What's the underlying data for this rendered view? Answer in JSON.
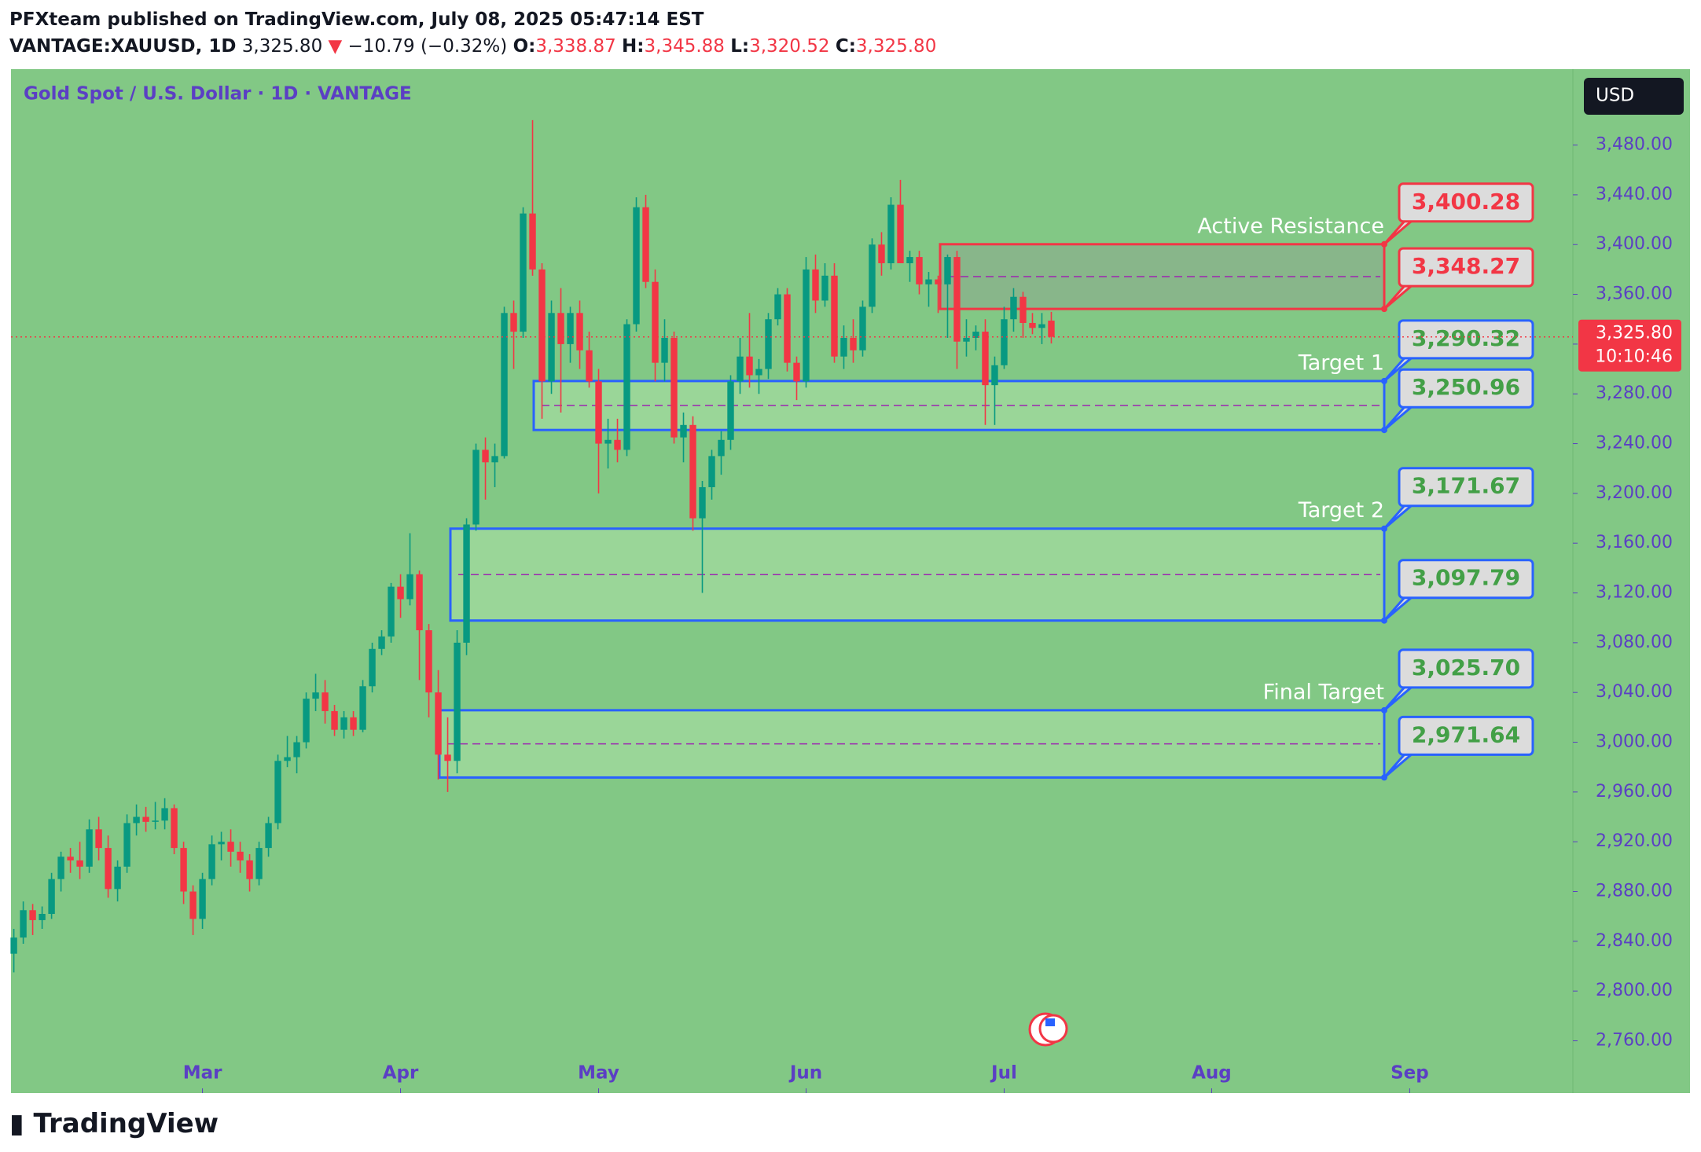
{
  "header": {
    "published": "PFXteam published on TradingView.com, July 08, 2025 05:47:14 EST",
    "symbol": "VANTAGE:XAUUSD, 1D",
    "last": "3,325.80",
    "arrow": "▼",
    "change": "−10.79 (−0.32%)",
    "o_label": "O:",
    "o": "3,338.87",
    "h_label": "H:",
    "h": "3,345.88",
    "l_label": "L:",
    "l": "3,320.52",
    "c_label": "C:",
    "c": "3,325.80"
  },
  "chart_data": {
    "type": "candlestick",
    "title": "Gold Spot / U.S. Dollar · 1D · VANTAGE",
    "up_color": "#089981",
    "down_color": "#f23645",
    "background": "#82c885",
    "ohlc": [
      [
        2830,
        2850,
        2815,
        2843
      ],
      [
        2843,
        2872,
        2838,
        2865
      ],
      [
        2865,
        2870,
        2845,
        2857
      ],
      [
        2857,
        2868,
        2850,
        2862
      ],
      [
        2862,
        2895,
        2858,
        2890
      ],
      [
        2890,
        2912,
        2880,
        2908
      ],
      [
        2908,
        2915,
        2895,
        2905
      ],
      [
        2905,
        2920,
        2890,
        2900
      ],
      [
        2900,
        2938,
        2895,
        2930
      ],
      [
        2930,
        2940,
        2905,
        2915
      ],
      [
        2915,
        2925,
        2875,
        2882
      ],
      [
        2882,
        2905,
        2872,
        2900
      ],
      [
        2900,
        2942,
        2895,
        2935
      ],
      [
        2935,
        2950,
        2925,
        2940
      ],
      [
        2940,
        2948,
        2928,
        2936
      ],
      [
        2936,
        2952,
        2930,
        2937
      ],
      [
        2937,
        2955,
        2930,
        2947
      ],
      [
        2947,
        2950,
        2910,
        2915
      ],
      [
        2915,
        2920,
        2870,
        2880
      ],
      [
        2880,
        2885,
        2845,
        2858
      ],
      [
        2858,
        2895,
        2850,
        2890
      ],
      [
        2890,
        2925,
        2885,
        2918
      ],
      [
        2918,
        2928,
        2905,
        2920
      ],
      [
        2920,
        2930,
        2900,
        2912
      ],
      [
        2912,
        2920,
        2895,
        2905
      ],
      [
        2905,
        2910,
        2880,
        2890
      ],
      [
        2890,
        2920,
        2885,
        2915
      ],
      [
        2915,
        2940,
        2908,
        2935
      ],
      [
        2935,
        2990,
        2930,
        2985
      ],
      [
        2985,
        3005,
        2980,
        2988
      ],
      [
        2988,
        3005,
        2975,
        3000
      ],
      [
        3000,
        3040,
        2995,
        3035
      ],
      [
        3035,
        3055,
        3025,
        3040
      ],
      [
        3040,
        3050,
        3015,
        3025
      ],
      [
        3025,
        3030,
        3005,
        3010
      ],
      [
        3010,
        3025,
        3003,
        3020
      ],
      [
        3020,
        3025,
        3005,
        3010
      ],
      [
        3010,
        3050,
        3008,
        3045
      ],
      [
        3045,
        3080,
        3040,
        3075
      ],
      [
        3075,
        3090,
        3070,
        3085
      ],
      [
        3085,
        3128,
        3080,
        3125
      ],
      [
        3125,
        3135,
        3100,
        3115
      ],
      [
        3115,
        3168,
        3110,
        3135
      ],
      [
        3135,
        3138,
        3050,
        3090
      ],
      [
        3090,
        3095,
        3020,
        3040
      ],
      [
        3040,
        3058,
        2970,
        2990
      ],
      [
        2990,
        3020,
        2960,
        2985
      ],
      [
        2985,
        3090,
        2975,
        3080
      ],
      [
        3080,
        3180,
        3070,
        3175
      ],
      [
        3175,
        3240,
        3170,
        3235
      ],
      [
        3235,
        3245,
        3195,
        3225
      ],
      [
        3225,
        3240,
        3205,
        3230
      ],
      [
        3230,
        3350,
        3228,
        3345
      ],
      [
        3345,
        3355,
        3300,
        3330
      ],
      [
        3330,
        3430,
        3325,
        3425
      ],
      [
        3425,
        3500,
        3375,
        3380
      ],
      [
        3380,
        3385,
        3260,
        3290
      ],
      [
        3290,
        3355,
        3280,
        3345
      ],
      [
        3345,
        3365,
        3265,
        3320
      ],
      [
        3320,
        3350,
        3305,
        3345
      ],
      [
        3345,
        3355,
        3300,
        3315
      ],
      [
        3315,
        3330,
        3285,
        3290
      ],
      [
        3290,
        3300,
        3200,
        3240
      ],
      [
        3240,
        3260,
        3220,
        3243
      ],
      [
        3243,
        3260,
        3225,
        3235
      ],
      [
        3235,
        3340,
        3230,
        3336
      ],
      [
        3336,
        3438,
        3330,
        3430
      ],
      [
        3430,
        3440,
        3365,
        3370
      ],
      [
        3370,
        3380,
        3290,
        3305
      ],
      [
        3305,
        3340,
        3290,
        3325
      ],
      [
        3325,
        3330,
        3240,
        3245
      ],
      [
        3245,
        3265,
        3225,
        3255
      ],
      [
        3255,
        3262,
        3170,
        3180
      ],
      [
        3180,
        3210,
        3120,
        3205
      ],
      [
        3205,
        3235,
        3195,
        3230
      ],
      [
        3230,
        3250,
        3215,
        3243
      ],
      [
        3243,
        3295,
        3235,
        3290
      ],
      [
        3290,
        3325,
        3280,
        3310
      ],
      [
        3310,
        3345,
        3285,
        3295
      ],
      [
        3295,
        3308,
        3280,
        3300
      ],
      [
        3300,
        3345,
        3292,
        3340
      ],
      [
        3340,
        3365,
        3335,
        3360
      ],
      [
        3360,
        3365,
        3298,
        3305
      ],
      [
        3305,
        3310,
        3275,
        3290
      ],
      [
        3290,
        3390,
        3285,
        3380
      ],
      [
        3380,
        3392,
        3345,
        3355
      ],
      [
        3355,
        3385,
        3350,
        3375
      ],
      [
        3375,
        3385,
        3305,
        3310
      ],
      [
        3310,
        3335,
        3300,
        3325
      ],
      [
        3325,
        3340,
        3305,
        3315
      ],
      [
        3315,
        3355,
        3310,
        3350
      ],
      [
        3350,
        3405,
        3345,
        3400
      ],
      [
        3400,
        3410,
        3375,
        3385
      ],
      [
        3385,
        3438,
        3380,
        3432
      ],
      [
        3432,
        3452,
        3385,
        3385
      ],
      [
        3385,
        3395,
        3370,
        3390
      ],
      [
        3390,
        3395,
        3360,
        3368
      ],
      [
        3368,
        3378,
        3350,
        3372
      ],
      [
        3372,
        3375,
        3345,
        3368
      ],
      [
        3368,
        3392,
        3325,
        3390
      ],
      [
        3390,
        3395,
        3300,
        3322
      ],
      [
        3322,
        3340,
        3310,
        3325
      ],
      [
        3325,
        3335,
        3315,
        3330
      ],
      [
        3330,
        3340,
        3255,
        3287
      ],
      [
        3287,
        3310,
        3255,
        3303
      ],
      [
        3303,
        3350,
        3300,
        3340
      ],
      [
        3340,
        3365,
        3330,
        3358
      ],
      [
        3358,
        3362,
        3325,
        3337
      ],
      [
        3337,
        3345,
        3328,
        3333
      ],
      [
        3333,
        3345,
        3320,
        3336
      ],
      [
        3338.87,
        3345.88,
        3320.52,
        3325.8
      ]
    ],
    "xlim": [
      -0.3,
      165.3
    ],
    "xticks": [
      {
        "value": 20,
        "label": "Mar"
      },
      {
        "value": 41,
        "label": "Apr"
      },
      {
        "value": 62,
        "label": "May"
      },
      {
        "value": 84,
        "label": "Jun"
      },
      {
        "value": 105,
        "label": "Jul"
      },
      {
        "value": 127,
        "label": "Aug"
      },
      {
        "value": 148,
        "label": "Sep"
      }
    ],
    "ylim": [
      2718,
      3541
    ],
    "yticks": [
      {
        "value": 2760,
        "label": "2,760.00"
      },
      {
        "value": 2800,
        "label": "2,800.00"
      },
      {
        "value": 2840,
        "label": "2,840.00"
      },
      {
        "value": 2880,
        "label": "2,880.00"
      },
      {
        "value": 2920,
        "label": "2,920.00"
      },
      {
        "value": 2960,
        "label": "2,960.00"
      },
      {
        "value": 3000,
        "label": "3,000.00"
      },
      {
        "value": 3040,
        "label": "3,040.00"
      },
      {
        "value": 3080,
        "label": "3,080.00"
      },
      {
        "value": 3120,
        "label": "3,120.00"
      },
      {
        "value": 3160,
        "label": "3,160.00"
      },
      {
        "value": 3200,
        "label": "3,200.00"
      },
      {
        "value": 3240,
        "label": "3,240.00"
      },
      {
        "value": 3280,
        "label": "3,280.00"
      },
      {
        "value": 3320,
        "label": "3,320.00"
      },
      {
        "value": 3360,
        "label": "3,360.00"
      },
      {
        "value": 3400,
        "label": "3,400.00"
      },
      {
        "value": 3440,
        "label": "3,440.00"
      },
      {
        "value": 3480,
        "label": "3,480.00"
      }
    ],
    "zones": [
      {
        "name": "Active Resistance",
        "color": "#f23645",
        "top": {
          "value": 3400.28,
          "label": "3,400.28"
        },
        "bottom": {
          "value": 3348.27,
          "label": "3,348.27"
        }
      },
      {
        "name": "Target 1",
        "color": "#2962ff",
        "top": {
          "value": 3290.32,
          "label": "3,290.32"
        },
        "bottom": {
          "value": 3250.96,
          "label": "3,250.96"
        }
      },
      {
        "name": "Target 2",
        "color": "#2962ff",
        "top": {
          "value": 3171.67,
          "label": "3,171.67"
        },
        "bottom": {
          "value": 3097.79,
          "label": "3,097.79"
        }
      },
      {
        "name": "Final Target",
        "color": "#2962ff",
        "top": {
          "value": 3025.7,
          "label": "3,025.70"
        },
        "bottom": {
          "value": 2971.64,
          "label": "2,971.64"
        }
      }
    ],
    "current_price": {
      "value": 3325.8,
      "label": "3,325.80"
    },
    "countdown": "10:10:46",
    "currency": "USD"
  },
  "footer": {
    "brand": "TradingView"
  }
}
